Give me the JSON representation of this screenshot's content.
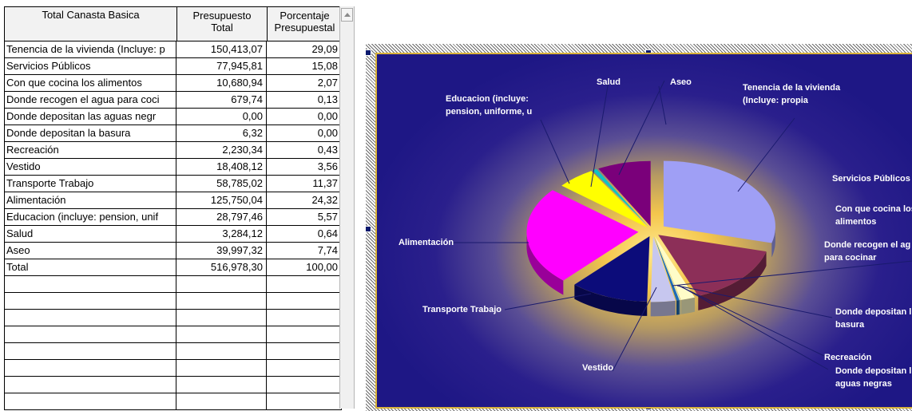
{
  "table": {
    "headers": {
      "col1": "Total Canasta Basica",
      "col2_line1": "Presupuesto",
      "col2_line2": "Total",
      "col3_line1": "Porcentaje",
      "col3_line2": "Presupuestal"
    },
    "rows": [
      {
        "name": "Tenencia de la vivienda (Incluye: p",
        "total": "150,413,07",
        "pct": "29,09"
      },
      {
        "name": "Servicios Públicos",
        "total": "77,945,81",
        "pct": "15,08"
      },
      {
        "name": "Con que cocina los alimentos",
        "total": "10,680,94",
        "pct": "2,07"
      },
      {
        "name": "Donde recogen el agua para coci",
        "total": "679,74",
        "pct": "0,13"
      },
      {
        "name": "Donde depositan las aguas negr",
        "total": "0,00",
        "pct": "0,00"
      },
      {
        "name": "Donde depositan la basura",
        "total": "6,32",
        "pct": "0,00"
      },
      {
        "name": "Recreación",
        "total": "2,230,34",
        "pct": "0,43"
      },
      {
        "name": "Vestido",
        "total": "18,408,12",
        "pct": "3,56"
      },
      {
        "name": "Transporte Trabajo",
        "total": "58,785,02",
        "pct": "11,37"
      },
      {
        "name": "Alimentación",
        "total": "125,750,04",
        "pct": "24,32"
      },
      {
        "name": "Educacion (incluye: pension, unif",
        "total": "28,797,46",
        "pct": "5,57"
      },
      {
        "name": "Salud",
        "total": "3,284,12",
        "pct": "0,64"
      },
      {
        "name": "Aseo",
        "total": "39,997,32",
        "pct": "7,74"
      },
      {
        "name": "Total",
        "total": "516,978,30",
        "pct": "100,00"
      }
    ],
    "empty_rows": 8
  },
  "chart": {
    "labels": {
      "tenencia_1": "Tenencia de la vivienda",
      "tenencia_2": "(Incluye: propia",
      "servicios": "Servicios Públicos",
      "cocina_1": "Con que cocina los",
      "cocina_2": "alimentos",
      "agua_1": "Donde recogen el ag",
      "agua_2": "para cocinar",
      "basura_1": "Donde depositan l",
      "basura_2": "basura",
      "recreacion": "Recreación",
      "aguasnegras_1": "Donde depositan l",
      "aguasnegras_2": "aguas negras",
      "vestido": "Vestido",
      "transporte": "Transporte Trabajo",
      "alimentacion": "Alimentación",
      "educacion_1": "Educacion (incluye:",
      "educacion_2": "pension, uniforme, u",
      "salud": "Salud",
      "aseo": "Aseo"
    }
  },
  "chart_data": {
    "type": "pie",
    "categories": [
      "Tenencia de la vivienda",
      "Servicios Públicos",
      "Con que cocina los alimentos",
      "Donde recogen el agua para cocinar",
      "Donde depositan las aguas negras",
      "Donde depositan la basura",
      "Recreación",
      "Vestido",
      "Transporte Trabajo",
      "Alimentación",
      "Educacion",
      "Salud",
      "Aseo"
    ],
    "values": [
      29.09,
      15.08,
      2.07,
      0.13,
      0.0,
      0.0,
      0.43,
      3.56,
      11.37,
      24.32,
      5.57,
      0.64,
      7.74
    ],
    "colors": [
      "#9f9ff5",
      "#8c2f58",
      "#fffcc8",
      "#c8f0f0",
      "#5d1a70",
      "#f08080",
      "#1d6bb8",
      "#c7c7ef",
      "#0c0c7a",
      "#ff00ff",
      "#ffff00",
      "#0cc4c4",
      "#7a007a"
    ]
  }
}
